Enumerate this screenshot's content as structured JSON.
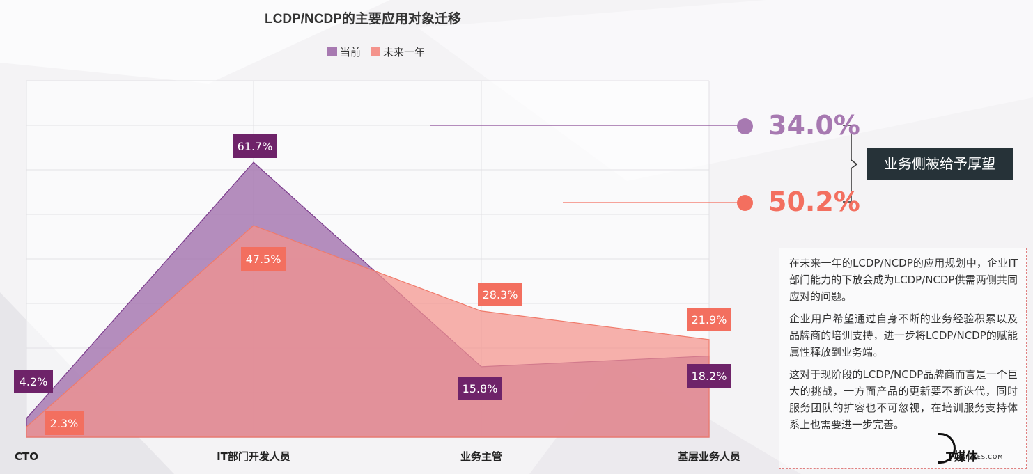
{
  "chart_data": {
    "type": "area",
    "title": "LCDP/NCDP的主要应用对象迁移",
    "categories": [
      "CTO",
      "IT部门开发人员",
      "业务主管",
      "基层业务人员"
    ],
    "series": [
      {
        "name": "当前",
        "values": [
          4.2,
          61.7,
          15.8,
          18.2
        ],
        "labels": [
          "4.2%",
          "61.7%",
          "15.8%",
          "18.2%"
        ],
        "color": "#7b3b8c",
        "fill": "#a779b1",
        "label_bg": "#6e2369"
      },
      {
        "name": "未来一年",
        "values": [
          2.3,
          47.5,
          28.3,
          21.9
        ],
        "labels": [
          "2.3%",
          "47.5%",
          "28.3%",
          "21.9%"
        ],
        "color": "#f07a6a",
        "fill": "#f4938c",
        "label_bg": "#f36f5f"
      }
    ],
    "ylim": [
      0,
      80
    ],
    "grid": true,
    "legend": "top"
  },
  "callouts": [
    {
      "value": "34.0%",
      "color": "#a779b1"
    },
    {
      "value": "50.2%",
      "color": "#f36f5f"
    }
  ],
  "tag_label": "业务侧被给予厚望",
  "notes": [
    "在未来一年的LCDP/NCDP的应用规划中，企业IT部门能力的下放会成为LCDP/NCDP供需两侧共同应对的问题。",
    "企业用户希望通过自身不断的业务经验积累以及品牌商的培训支持，进一步将LCDP/NCDP的赋能属性释放到业务端。",
    "这对于现阶段的LCDP/NCDP品牌商而言是一个巨大的挑战，一方面产品的更新要不断迭代，同时服务团队的扩容也不可忽视，在培训服务支持体系上也需要进一步完善。"
  ],
  "watermark": {
    "text": "T媒体",
    "sub": "CNITEYES.COM"
  }
}
